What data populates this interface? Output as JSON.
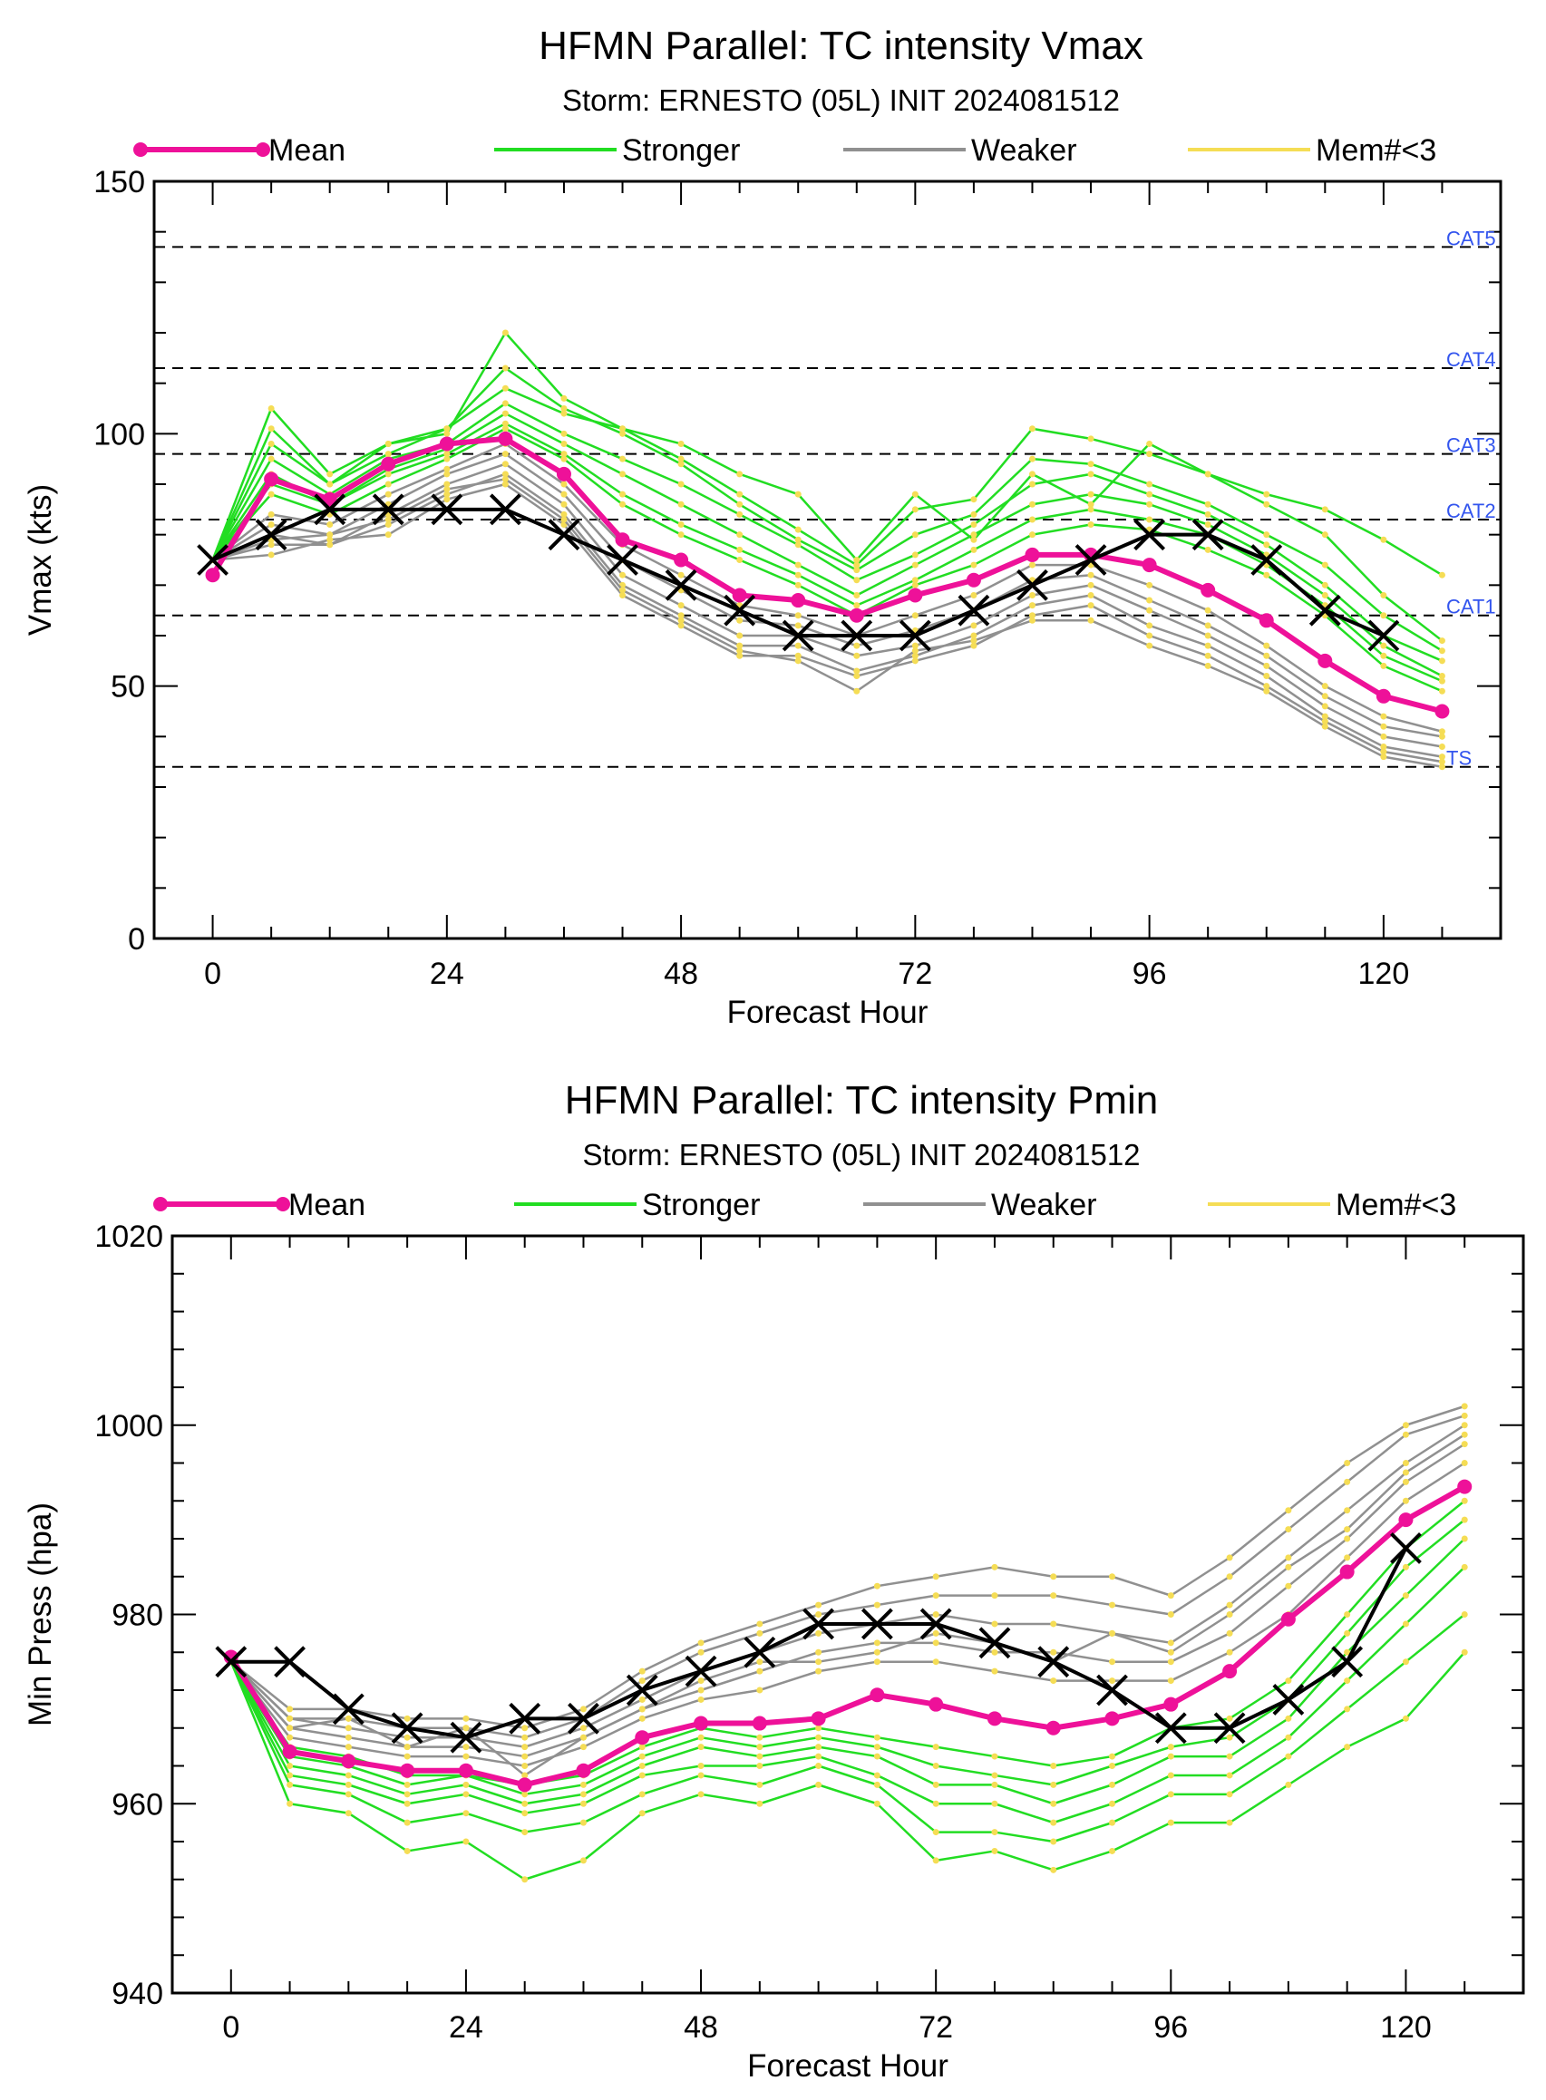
{
  "chart_data": [
    {
      "type": "line",
      "title": "HFMN Parallel: TC intensity Vmax",
      "subtitle": "Storm: ERNESTO (05L) INIT 2024081512",
      "xlabel": "Forecast Hour",
      "ylabel": "Vmax (kts)",
      "xlim": [
        -6,
        132
      ],
      "ylim": [
        0,
        150
      ],
      "xticks": [
        0,
        24,
        48,
        72,
        96,
        120
      ],
      "yticks": [
        0,
        50,
        100,
        150
      ],
      "legend": [
        {
          "name": "Mean",
          "color": "#ee1199"
        },
        {
          "name": "Stronger",
          "color": "#22dd22"
        },
        {
          "name": "Weaker",
          "color": "#909090"
        },
        {
          "name": "Mem#<3",
          "color": "#f5dd55"
        }
      ],
      "reference_lines": [
        {
          "label": "CAT5",
          "value": 137
        },
        {
          "label": "CAT4",
          "value": 113
        },
        {
          "label": "CAT3",
          "value": 96
        },
        {
          "label": "CAT2",
          "value": 83
        },
        {
          "label": "CAT1",
          "value": 64
        },
        {
          "label": "TS",
          "value": 34
        }
      ],
      "x": [
        0,
        6,
        12,
        18,
        24,
        30,
        36,
        42,
        48,
        54,
        60,
        66,
        72,
        78,
        84,
        90,
        96,
        102,
        108,
        114,
        120,
        126
      ],
      "series": [
        {
          "name": "Mean",
          "role": "mean",
          "values": [
            72,
            91,
            87,
            94,
            98,
            99,
            92,
            79,
            75,
            68,
            67,
            64,
            68,
            71,
            76,
            76,
            74,
            69,
            63,
            55,
            48,
            45
          ]
        },
        {
          "role": "black",
          "values": [
            75,
            80,
            85,
            85,
            85,
            85,
            80,
            75,
            70,
            65,
            60,
            60,
            60,
            65,
            70,
            75,
            80,
            80,
            75,
            65,
            60,
            null
          ]
        },
        {
          "role": "stronger",
          "values": [
            75,
            105,
            92,
            98,
            100,
            120,
            107,
            101,
            95,
            88,
            81,
            74,
            85,
            87,
            101,
            99,
            96,
            92,
            86,
            80,
            68,
            59
          ]
        },
        {
          "role": "stronger",
          "values": [
            75,
            101,
            90,
            98,
            101,
            113,
            105,
            100,
            94,
            86,
            79,
            73,
            80,
            84,
            95,
            94,
            90,
            86,
            80,
            74,
            64,
            57
          ]
        },
        {
          "role": "stronger",
          "values": [
            75,
            98,
            90,
            96,
            101,
            109,
            104,
            101,
            98,
            92,
            88,
            75,
            88,
            79,
            92,
            86,
            98,
            92,
            88,
            85,
            79,
            72
          ]
        },
        {
          "role": "stronger",
          "values": [
            75,
            95,
            88,
            95,
            98,
            106,
            100,
            95,
            90,
            84,
            78,
            71,
            76,
            82,
            90,
            92,
            88,
            84,
            78,
            70,
            60,
            55
          ]
        },
        {
          "role": "stronger",
          "values": [
            75,
            92,
            86,
            93,
            97,
            104,
            98,
            92,
            86,
            80,
            74,
            68,
            74,
            80,
            86,
            88,
            86,
            82,
            76,
            68,
            58,
            52
          ]
        },
        {
          "role": "stronger",
          "values": [
            75,
            90,
            86,
            92,
            96,
            102,
            96,
            88,
            82,
            77,
            72,
            66,
            71,
            77,
            83,
            85,
            83,
            80,
            74,
            66,
            56,
            51
          ]
        },
        {
          "role": "stronger",
          "values": [
            75,
            88,
            84,
            90,
            95,
            101,
            95,
            86,
            80,
            75,
            70,
            64,
            70,
            74,
            80,
            82,
            81,
            77,
            72,
            64,
            54,
            49
          ]
        },
        {
          "role": "weaker",
          "values": [
            75,
            84,
            82,
            88,
            93,
            98,
            90,
            78,
            72,
            66,
            64,
            60,
            64,
            68,
            74,
            74,
            70,
            65,
            58,
            50,
            44,
            41
          ]
        },
        {
          "role": "weaker",
          "values": [
            75,
            82,
            80,
            86,
            92,
            96,
            88,
            75,
            69,
            63,
            62,
            58,
            61,
            65,
            71,
            72,
            67,
            62,
            56,
            48,
            42,
            40
          ]
        },
        {
          "role": "weaker",
          "values": [
            75,
            80,
            78,
            84,
            90,
            94,
            86,
            72,
            66,
            60,
            60,
            56,
            58,
            62,
            68,
            70,
            65,
            60,
            54,
            46,
            40,
            38
          ]
        },
        {
          "role": "weaker",
          "values": [
            75,
            78,
            78,
            82,
            88,
            92,
            84,
            70,
            64,
            58,
            58,
            53,
            56,
            60,
            66,
            68,
            62,
            58,
            52,
            44,
            38,
            36
          ]
        },
        {
          "role": "weaker",
          "values": [
            75,
            76,
            79,
            80,
            87,
            90,
            82,
            68,
            62,
            56,
            56,
            52,
            55,
            58,
            64,
            66,
            60,
            56,
            50,
            43,
            37,
            35
          ]
        },
        {
          "role": "weaker",
          "values": [
            75,
            79,
            80,
            83,
            89,
            91,
            83,
            69,
            63,
            57,
            55,
            49,
            57,
            59,
            63,
            63,
            58,
            54,
            49,
            42,
            36,
            34
          ]
        }
      ]
    },
    {
      "type": "line",
      "title": "HFMN Parallel: TC intensity Pmin",
      "subtitle": "Storm: ERNESTO (05L) INIT 2024081512",
      "xlabel": "Forecast Hour",
      "ylabel": "Min Press (hpa)",
      "xlim": [
        -6,
        132
      ],
      "ylim": [
        940,
        1020
      ],
      "xticks": [
        0,
        24,
        48,
        72,
        96,
        120
      ],
      "yticks": [
        940,
        960,
        980,
        1000,
        1020
      ],
      "legend": [
        {
          "name": "Mean",
          "color": "#ee1199"
        },
        {
          "name": "Stronger",
          "color": "#22dd22"
        },
        {
          "name": "Weaker",
          "color": "#909090"
        },
        {
          "name": "Mem#<3",
          "color": "#f5dd55"
        }
      ],
      "x": [
        0,
        6,
        12,
        18,
        24,
        30,
        36,
        42,
        48,
        54,
        60,
        66,
        72,
        78,
        84,
        90,
        96,
        102,
        108,
        114,
        120,
        126
      ],
      "series": [
        {
          "name": "Mean",
          "role": "mean",
          "values": [
            975.5,
            965.5,
            964.5,
            963.5,
            963.5,
            962,
            963.5,
            967,
            968.5,
            968.5,
            969,
            971.5,
            970.5,
            969,
            968,
            969,
            970.5,
            974,
            979.5,
            984.5,
            990,
            993.5
          ]
        },
        {
          "role": "black",
          "values": [
            975,
            975,
            970,
            968,
            967,
            969,
            969,
            972,
            974,
            976,
            979,
            979,
            979,
            977,
            975,
            972,
            968,
            968,
            971,
            975,
            987,
            null
          ]
        },
        {
          "role": "stronger",
          "values": [
            975,
            960,
            959,
            955,
            956,
            952,
            954,
            959,
            961,
            960,
            962,
            960,
            954,
            955,
            953,
            955,
            958,
            958,
            962,
            966,
            969,
            976
          ]
        },
        {
          "role": "stronger",
          "values": [
            975,
            962,
            961,
            958,
            959,
            957,
            958,
            961,
            963,
            962,
            964,
            962,
            957,
            957,
            956,
            958,
            961,
            961,
            965,
            970,
            975,
            980
          ]
        },
        {
          "role": "stronger",
          "values": [
            975,
            963,
            962,
            960,
            961,
            959,
            960,
            963,
            964,
            964,
            965,
            963,
            960,
            960,
            958,
            960,
            963,
            963,
            967,
            973,
            979,
            985
          ]
        },
        {
          "role": "stronger",
          "values": [
            975,
            964,
            963,
            961,
            962,
            960,
            961,
            964,
            966,
            965,
            966,
            965,
            962,
            962,
            960,
            962,
            965,
            965,
            969,
            976,
            982,
            988
          ]
        },
        {
          "role": "stronger",
          "values": [
            975,
            965,
            964,
            962,
            963,
            961,
            962,
            965,
            967,
            966,
            967,
            966,
            964,
            963,
            962,
            964,
            966,
            967,
            971,
            978,
            985,
            990
          ]
        },
        {
          "role": "stronger",
          "values": [
            975,
            966,
            965,
            963,
            963,
            962,
            963,
            966,
            968,
            967,
            968,
            967,
            966,
            965,
            964,
            965,
            968,
            969,
            973,
            980,
            987,
            992
          ]
        },
        {
          "role": "weaker",
          "values": [
            975,
            967,
            966,
            965,
            965,
            964,
            966,
            969,
            971,
            972,
            974,
            975,
            975,
            974,
            973,
            973,
            973,
            976,
            980,
            986,
            992,
            996
          ]
        },
        {
          "role": "weaker",
          "values": [
            975,
            968,
            967,
            966,
            966,
            965,
            967,
            970,
            972,
            974,
            976,
            977,
            977,
            976,
            976,
            975,
            975,
            978,
            983,
            988,
            994,
            998
          ]
        },
        {
          "role": "weaker",
          "values": [
            975,
            969,
            968,
            967,
            967,
            966,
            968,
            971,
            974,
            976,
            978,
            979,
            980,
            979,
            979,
            978,
            977,
            981,
            986,
            991,
            996,
            1000
          ]
        },
        {
          "role": "weaker",
          "values": [
            975,
            969,
            969,
            968,
            968,
            967,
            969,
            973,
            976,
            978,
            980,
            981,
            982,
            982,
            982,
            981,
            980,
            984,
            989,
            994,
            999,
            1001
          ]
        },
        {
          "role": "weaker",
          "values": [
            975,
            970,
            970,
            969,
            969,
            968,
            970,
            974,
            977,
            979,
            981,
            983,
            984,
            985,
            984,
            984,
            982,
            986,
            991,
            996,
            1000,
            1002
          ]
        },
        {
          "role": "weaker",
          "values": [
            975,
            968,
            969,
            966,
            968,
            963,
            967,
            970,
            973,
            975,
            975,
            976,
            978,
            977,
            975,
            978,
            976,
            980,
            985,
            989,
            995,
            999
          ]
        }
      ]
    }
  ]
}
